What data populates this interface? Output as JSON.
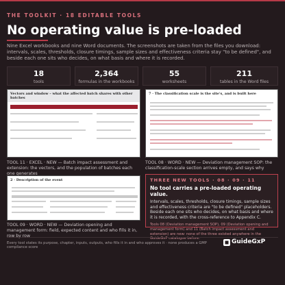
{
  "header": {
    "kicker": "THE TOOLKIT · 18 EDITABLE TOOLS",
    "title": "No operating value is pre-loaded",
    "intro": "Nine Excel workbooks and nine Word documents. The screenshots are taken from the files you download: intervals, scales, thresholds, closure timings, sample sizes and effectiveness criteria stay \"to be defined\", and beside each one sits who decides, on what basis and where it is recorded."
  },
  "stats": [
    {
      "value": "18",
      "label": "tools"
    },
    {
      "value": "2,364",
      "label": "formulas in the workbooks"
    },
    {
      "value": "55",
      "label": "worksheets"
    },
    {
      "value": "211",
      "label": "tables in the Word files"
    }
  ],
  "screenshots": [
    {
      "heading": "Vectors and window – what the affected batch shares with other batches",
      "caption": "TOOL 11 · EXCEL · NEW — Batch impact assessment and extension: the vectors, and the population of batches each one generates"
    },
    {
      "heading": "7 · The classification scale is the site's, and is built here",
      "caption": "TOOL 08 · WORD · NEW — Deviation management SOP: the classification-scale section arrives empty, and says why"
    },
    {
      "heading": "2 · Description of the event",
      "caption": "TOOL 09 · WORD · NEW — Deviation opening and management form: field, expected content and who fills it in, row by row"
    }
  ],
  "callout": {
    "kicker": "THREE NEW TOOLS · 08 · 09 · 11",
    "title": "No tool carries a pre-loaded operating value.",
    "body": "Intervals, scales, thresholds, closure timings, sample sizes and effectiveness criteria are \"to be defined\" placeholders. Beside each one sits who decides, on what basis and where it is recorded, with the cross-reference to Appendix C.",
    "note": "Tools 08 (Deviation management SOP), 09 (Deviation opening and management form) and 11 (Batch impact assessment and extension) are new: none of the three existed anywhere in the GuideGxP catalogue before."
  },
  "footer": {
    "text": "Every tool states its purpose, chapter, inputs, outputs, who fills it in and who approves it · none produces a GMP compliance score",
    "logo": "GuideGxP"
  }
}
